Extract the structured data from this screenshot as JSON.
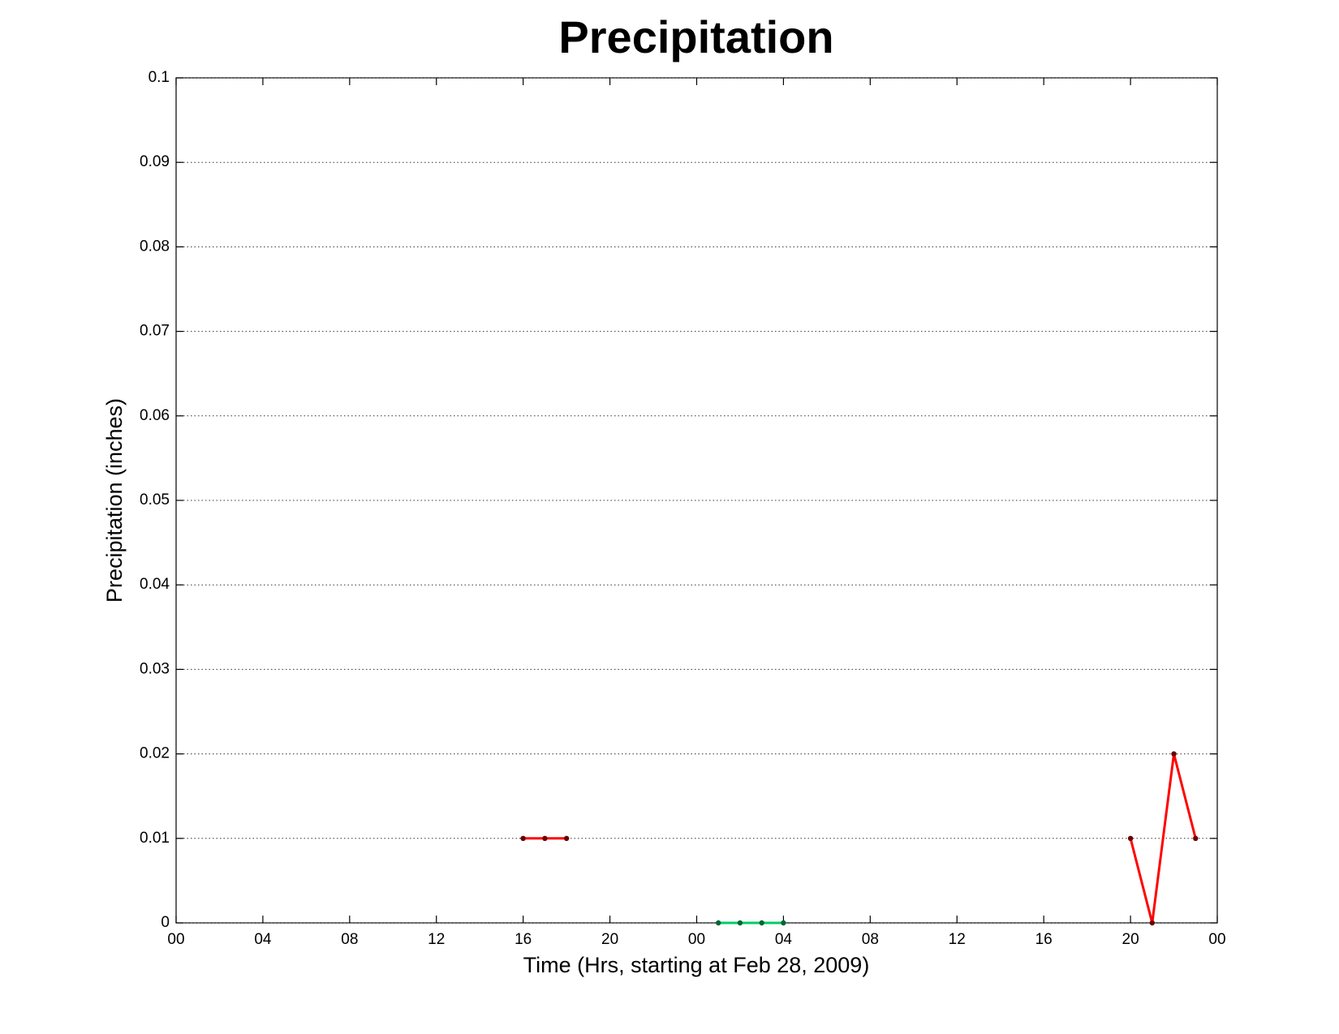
{
  "chart_data": {
    "type": "line",
    "title": "Precipitation",
    "x_label": "Time (Hrs, starting at Feb 28, 2009)",
    "y_label": "Precipitation (inches)",
    "xlim": [
      0,
      48
    ],
    "xticks": [
      {
        "value": 0,
        "label": "00"
      },
      {
        "value": 4,
        "label": "04"
      },
      {
        "value": 8,
        "label": "08"
      },
      12,
      16,
      20,
      {
        "value": 24,
        "label": "00"
      },
      {
        "value": 28,
        "label": "04"
      },
      {
        "value": 32,
        "label": "08"
      },
      {
        "value": 36,
        "label": "12"
      },
      {
        "value": 40,
        "label": "16"
      },
      {
        "value": 44,
        "label": "20"
      },
      {
        "value": 48,
        "label": "00"
      }
    ],
    "ylim": [
      0,
      0.1
    ],
    "yticks": [
      0,
      0.01,
      0.02,
      0.03,
      0.04,
      0.05,
      0.06,
      0.07,
      0.08,
      0.09,
      0.1
    ],
    "grid": "y",
    "series": [
      {
        "color": "#ff0000",
        "marker_color": "#6b0000",
        "x": [
          16,
          17,
          18
        ],
        "values": [
          0.01,
          0.01,
          0.01
        ]
      },
      {
        "color": "#00cc66",
        "marker_color": "#006633",
        "x": [
          25,
          26,
          27,
          28
        ],
        "values": [
          0,
          0,
          0,
          0
        ]
      },
      {
        "color": "#ff0000",
        "marker_color": "#6b0000",
        "x": [
          44,
          45,
          46,
          47
        ],
        "values": [
          0.01,
          0,
          0.02,
          0.01
        ]
      }
    ]
  }
}
